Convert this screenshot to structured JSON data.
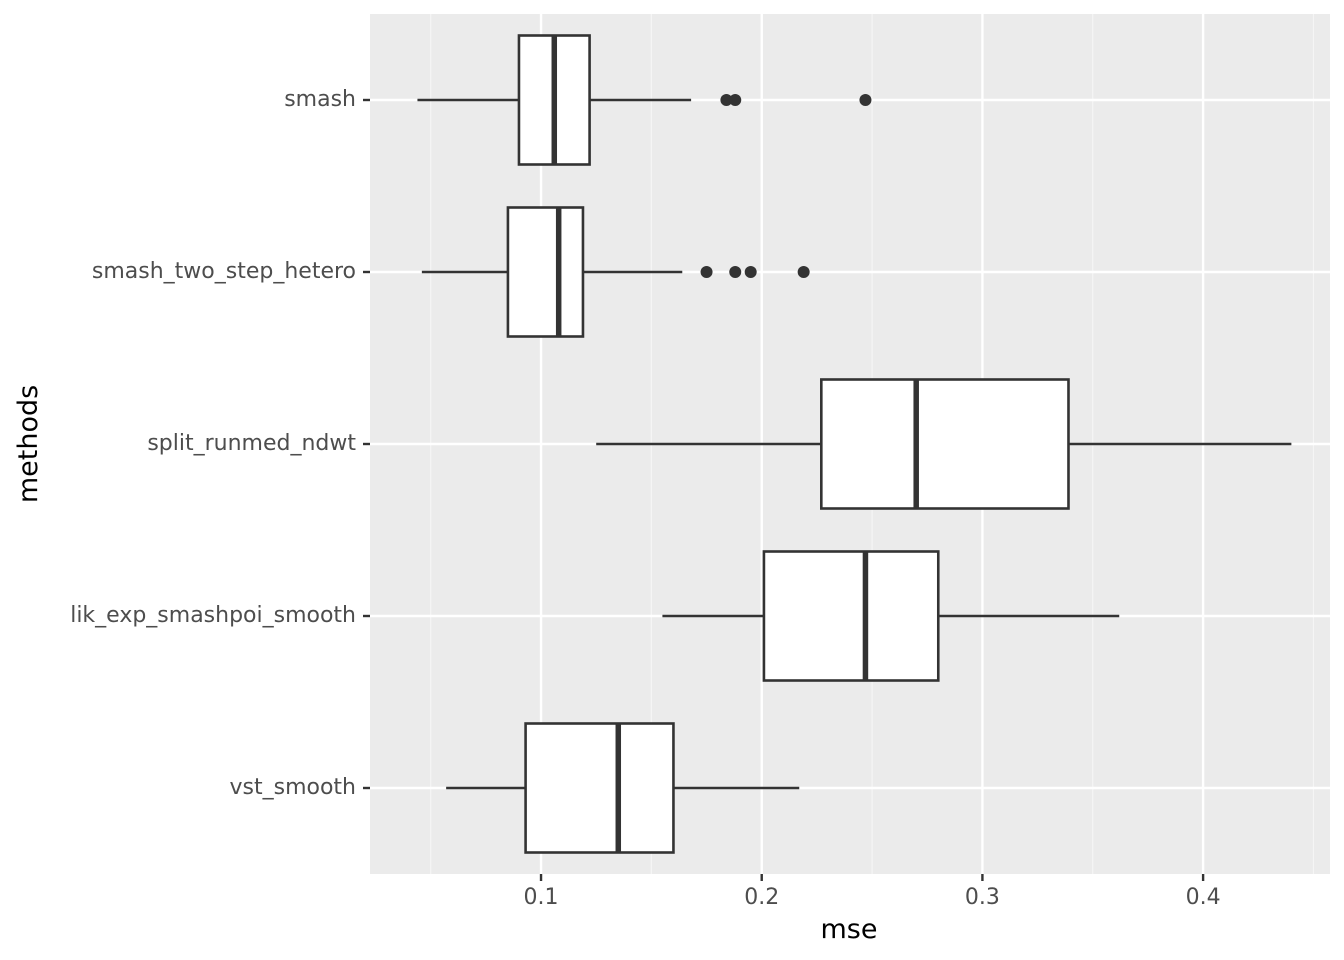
{
  "chart_data": {
    "type": "boxplot",
    "orientation": "horizontal",
    "title": "",
    "xlabel": "mse",
    "ylabel": "methods",
    "xlim": [
      0.0225,
      0.4575
    ],
    "x_ticks": [
      0.1,
      0.2,
      0.3,
      0.4
    ],
    "x_tick_labels": [
      "0.1",
      "0.2",
      "0.3",
      "0.4"
    ],
    "grid": true,
    "legend": "none",
    "colors": {
      "panel_bg": "#ebebeb",
      "grid_major": "#ffffff",
      "grid_minor": "#f5f5f5",
      "box_fill": "#ffffff",
      "box_stroke": "#333333",
      "tick": "#333333"
    },
    "categories": [
      "smash",
      "smash_two_step_hetero",
      "split_runmed_ndwt",
      "lik_exp_smashpoi_smooth",
      "vst_smooth"
    ],
    "boxes": [
      {
        "name": "smash",
        "whisker_low": 0.044,
        "q1": 0.09,
        "median": 0.106,
        "q3": 0.122,
        "whisker_high": 0.168,
        "outliers": [
          0.184,
          0.188,
          0.247
        ]
      },
      {
        "name": "smash_two_step_hetero",
        "whisker_low": 0.046,
        "q1": 0.085,
        "median": 0.108,
        "q3": 0.119,
        "whisker_high": 0.164,
        "outliers": [
          0.175,
          0.188,
          0.195,
          0.219
        ]
      },
      {
        "name": "split_runmed_ndwt",
        "whisker_low": 0.125,
        "q1": 0.227,
        "median": 0.27,
        "q3": 0.339,
        "whisker_high": 0.44,
        "outliers": []
      },
      {
        "name": "lik_exp_smashpoi_smooth",
        "whisker_low": 0.155,
        "q1": 0.201,
        "median": 0.247,
        "q3": 0.28,
        "whisker_high": 0.362,
        "outliers": []
      },
      {
        "name": "vst_smooth",
        "whisker_low": 0.057,
        "q1": 0.093,
        "median": 0.135,
        "q3": 0.16,
        "whisker_high": 0.217,
        "outliers": []
      }
    ]
  }
}
